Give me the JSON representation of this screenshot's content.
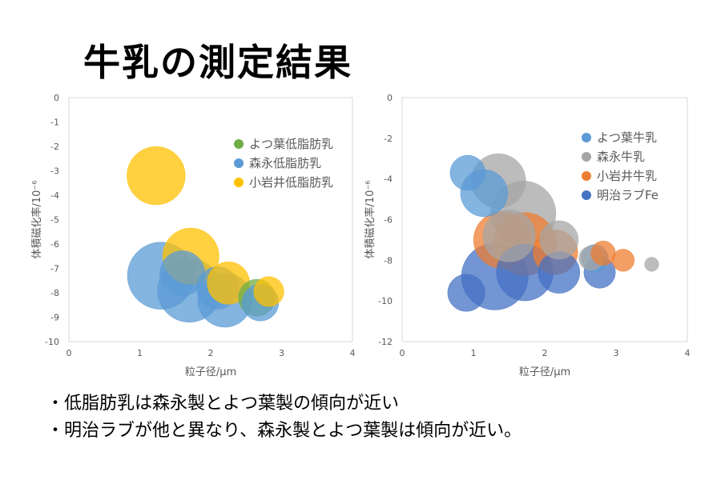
{
  "slide": {
    "title": "牛乳の測定結果",
    "bullets": [
      "・低脂肪乳は森永製とよつ葉製の傾向が近い",
      "・明治ラブが他と異なり、森永製とよつ葉製は傾向が近い。"
    ]
  },
  "chart_data": [
    {
      "type": "bubble",
      "xlabel": "粒子径/μm",
      "ylabel": "体積磁化率/10⁻⁶",
      "xlim": [
        0,
        4
      ],
      "ylim": [
        -10,
        0
      ],
      "x_ticks": [
        "0",
        "1",
        "2",
        "3",
        "4"
      ],
      "y_ticks": [
        "0",
        "-1",
        "-2",
        "-3",
        "-4",
        "-5",
        "-6",
        "-7",
        "-8",
        "-9",
        "-10"
      ],
      "legend_position": "top-right",
      "series": [
        {
          "name": "よつ葉低脂肪乳",
          "color": "#70ad47",
          "points": [
            {
              "x": 2.65,
              "y": -8.2,
              "size": 0.3
            }
          ]
        },
        {
          "name": "森永低脂肪乳",
          "color": "#5b9bd5",
          "points": [
            {
              "x": 1.3,
              "y": -7.3,
              "size": 1.0
            },
            {
              "x": 1.7,
              "y": -7.9,
              "size": 0.9
            },
            {
              "x": 1.6,
              "y": -7.2,
              "size": 0.45
            },
            {
              "x": 2.2,
              "y": -8.3,
              "size": 0.65
            },
            {
              "x": 2.1,
              "y": -7.8,
              "size": 0.4
            },
            {
              "x": 2.7,
              "y": -8.4,
              "size": 0.3
            }
          ]
        },
        {
          "name": "小岩井低脂肪乳",
          "color": "#ffc000",
          "points": [
            {
              "x": 1.23,
              "y": -3.2,
              "size": 0.75
            },
            {
              "x": 1.72,
              "y": -6.5,
              "size": 0.7
            },
            {
              "x": 2.25,
              "y": -7.6,
              "size": 0.4
            },
            {
              "x": 2.82,
              "y": -7.95,
              "size": 0.2
            }
          ]
        }
      ]
    },
    {
      "type": "bubble",
      "xlabel": "粒子径/μm",
      "ylabel": "体積磁化率/10⁻⁶",
      "xlim": [
        0,
        4
      ],
      "ylim": [
        -12,
        0
      ],
      "x_ticks": [
        "0",
        "1",
        "2",
        "3",
        "4"
      ],
      "y_ticks": [
        "0",
        "-2",
        "-4",
        "-6",
        "-8",
        "-10",
        "-12"
      ],
      "legend_position": "top-right",
      "series": [
        {
          "name": "よつ葉牛乳",
          "color": "#5b9bd5",
          "points": [
            {
              "x": 1.15,
              "y": -4.7,
              "size": 0.45
            },
            {
              "x": 0.92,
              "y": -3.7,
              "size": 0.25
            },
            {
              "x": 2.7,
              "y": -7.9,
              "size": 0.15
            }
          ]
        },
        {
          "name": "森永牛乳",
          "color": "#a5a5a5",
          "points": [
            {
              "x": 1.35,
              "y": -4.1,
              "size": 0.6
            },
            {
              "x": 1.7,
              "y": -5.7,
              "size": 0.85
            },
            {
              "x": 1.5,
              "y": -6.8,
              "size": 0.55
            },
            {
              "x": 2.2,
              "y": -7.0,
              "size": 0.3
            },
            {
              "x": 2.65,
              "y": -7.9,
              "size": 0.12
            },
            {
              "x": 3.5,
              "y": -8.2,
              "size": 0.04
            }
          ]
        },
        {
          "name": "小岩井牛乳",
          "color": "#ed7d31",
          "points": [
            {
              "x": 1.4,
              "y": -7.0,
              "size": 0.65
            },
            {
              "x": 1.72,
              "y": -7.2,
              "size": 0.8
            },
            {
              "x": 2.15,
              "y": -7.6,
              "size": 0.4
            },
            {
              "x": 2.82,
              "y": -7.65,
              "size": 0.12
            },
            {
              "x": 3.1,
              "y": -8.0,
              "size": 0.1
            }
          ]
        },
        {
          "name": "明治ラブFe",
          "color": "#4472c4",
          "points": [
            {
              "x": 1.3,
              "y": -8.8,
              "size": 0.9
            },
            {
              "x": 1.72,
              "y": -8.6,
              "size": 0.65
            },
            {
              "x": 2.2,
              "y": -8.6,
              "size": 0.35
            },
            {
              "x": 2.77,
              "y": -8.6,
              "size": 0.2
            },
            {
              "x": 0.9,
              "y": -9.6,
              "size": 0.28
            }
          ]
        }
      ]
    }
  ]
}
